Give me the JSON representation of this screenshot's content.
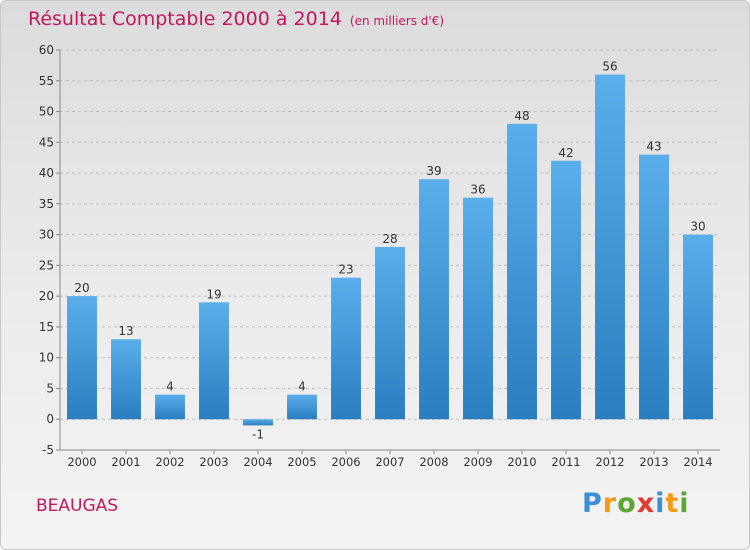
{
  "title": "Résultat Comptable 2000 à 2014",
  "title_unit": "(en milliers d'€)",
  "commune": "BEAUGAS",
  "logo": {
    "text": "Proxiti",
    "letters": [
      {
        "ch": "P",
        "color": "#3a8fd8"
      },
      {
        "ch": "r",
        "color": "#f39c12"
      },
      {
        "ch": "o",
        "color": "#5aa832"
      },
      {
        "ch": "x",
        "color": "#e23a2e"
      },
      {
        "ch": "i",
        "color": "#3a8fd8"
      },
      {
        "ch": "t",
        "color": "#f39c12"
      },
      {
        "ch": "i",
        "color": "#5aa832"
      }
    ]
  },
  "colors": {
    "accent": "#c2185b",
    "bar_top": "#5aaeea",
    "bar_bottom": "#2a7ec0",
    "grid": "#bdbdbd",
    "axis_text": "#333333"
  },
  "chart_data": {
    "type": "bar",
    "categories": [
      "2000",
      "2001",
      "2002",
      "2003",
      "2004",
      "2005",
      "2006",
      "2007",
      "2008",
      "2009",
      "2010",
      "2011",
      "2012",
      "2013",
      "2014"
    ],
    "values": [
      20,
      13,
      4,
      19,
      -1,
      4,
      23,
      28,
      39,
      36,
      48,
      42,
      56,
      43,
      30
    ],
    "value_labels": [
      "20",
      "13",
      "4",
      "19",
      "-1",
      "4",
      "23",
      "28",
      "39",
      "36",
      "48",
      "42",
      "56",
      "43",
      "30"
    ],
    "ylim": [
      -5,
      60
    ],
    "yticks": [
      -5,
      0,
      5,
      10,
      15,
      20,
      25,
      30,
      35,
      40,
      45,
      50,
      55,
      60
    ],
    "grid": true,
    "xlabel": "",
    "ylabel": ""
  }
}
